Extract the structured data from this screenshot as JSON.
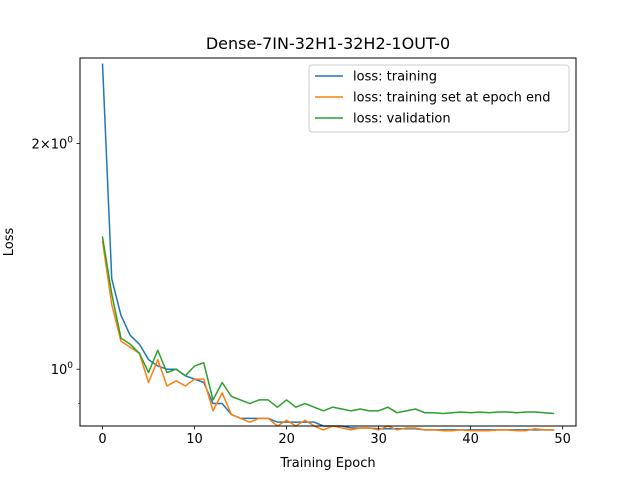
{
  "chart_data": {
    "type": "line",
    "title": "Dense-7IN-32H1-32H2-1OUT-0",
    "xlabel": "Training Epoch",
    "ylabel": "Loss",
    "yscale": "log",
    "xlim": [
      -2.45,
      51.45
    ],
    "ylim": [
      0.84,
      2.6
    ],
    "x_ticks": [
      0,
      10,
      20,
      30,
      40,
      50
    ],
    "x_tick_labels": [
      "0",
      "10",
      "20",
      "30",
      "40",
      "50"
    ],
    "y_ticks_major": [
      1.0,
      2.0
    ],
    "y_tick_labels": {
      "base": [
        "10",
        "2×10"
      ],
      "exp": [
        "0",
        "0"
      ]
    },
    "y_ticks_minor": [
      0.9
    ],
    "legend_position": "upper right",
    "grid": false,
    "x": [
      0,
      1,
      2,
      3,
      4,
      5,
      6,
      7,
      8,
      9,
      10,
      11,
      12,
      13,
      14,
      15,
      16,
      17,
      18,
      19,
      20,
      21,
      22,
      23,
      24,
      25,
      26,
      27,
      28,
      29,
      30,
      31,
      32,
      33,
      34,
      35,
      36,
      37,
      38,
      39,
      40,
      41,
      42,
      43,
      44,
      45,
      46,
      47,
      48,
      49
    ],
    "series": [
      {
        "name": "loss: training",
        "color": "#1f77b4",
        "values": [
          2.55,
          1.32,
          1.18,
          1.11,
          1.08,
          1.03,
          1.01,
          1.0,
          1.0,
          0.98,
          0.97,
          0.96,
          0.9,
          0.9,
          0.87,
          0.86,
          0.86,
          0.86,
          0.86,
          0.85,
          0.85,
          0.85,
          0.85,
          0.85,
          0.84,
          0.84,
          0.84,
          0.835,
          0.835,
          0.835,
          0.833,
          0.833,
          0.833,
          0.833,
          0.833,
          0.83,
          0.83,
          0.83,
          0.83,
          0.83,
          0.83,
          0.83,
          0.83,
          0.83,
          0.83,
          0.83,
          0.83,
          0.83,
          0.83,
          0.83
        ]
      },
      {
        "name": "loss: training set at epoch end",
        "color": "#ff7f0e",
        "values": [
          1.48,
          1.22,
          1.09,
          1.07,
          1.05,
          0.96,
          1.03,
          0.95,
          0.965,
          0.95,
          0.97,
          0.97,
          0.88,
          0.93,
          0.87,
          0.86,
          0.85,
          0.86,
          0.86,
          0.84,
          0.855,
          0.84,
          0.855,
          0.84,
          0.83,
          0.84,
          0.835,
          0.83,
          0.835,
          0.835,
          0.83,
          0.84,
          0.83,
          0.835,
          0.835,
          0.83,
          0.83,
          0.828,
          0.828,
          0.83,
          0.828,
          0.828,
          0.828,
          0.83,
          0.83,
          0.828,
          0.828,
          0.833,
          0.83,
          0.83
        ]
      },
      {
        "name": "loss: validation",
        "color": "#2ca02c",
        "values": [
          1.5,
          1.26,
          1.1,
          1.08,
          1.05,
          0.99,
          1.06,
          0.99,
          1.0,
          0.98,
          1.01,
          1.02,
          0.91,
          0.96,
          0.92,
          0.91,
          0.9,
          0.91,
          0.91,
          0.89,
          0.91,
          0.89,
          0.9,
          0.89,
          0.88,
          0.89,
          0.885,
          0.88,
          0.885,
          0.88,
          0.88,
          0.89,
          0.875,
          0.88,
          0.885,
          0.875,
          0.875,
          0.873,
          0.875,
          0.877,
          0.875,
          0.877,
          0.875,
          0.877,
          0.877,
          0.875,
          0.877,
          0.877,
          0.875,
          0.873
        ]
      }
    ]
  }
}
